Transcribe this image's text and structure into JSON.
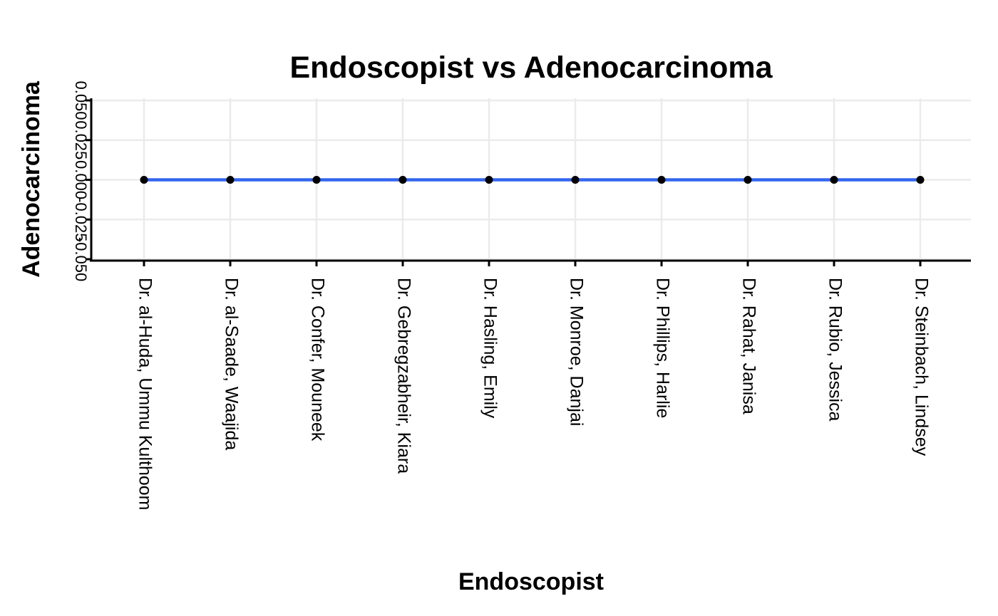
{
  "chart_data": {
    "type": "line",
    "title": "Endoscopist vs Adenocarcinoma",
    "xlabel": "Endoscopist",
    "ylabel": "Adenocarcinoma",
    "categories": [
      "Dr. al-Huda, Ummu Kulthoom",
      "Dr. al-Saade, Waajida",
      "Dr. Confer, Mouneek",
      "Dr. Gebregzabheir, Kiara",
      "Dr. Hasling, Emily",
      "Dr. Monroe, Danjai",
      "Dr. Phillips, Harlie",
      "Dr. Rahat, Janisa",
      "Dr. Rubio, Jessica",
      "Dr. Steinbach, Lindsey"
    ],
    "series": [
      {
        "values": [
          0,
          0,
          0,
          0,
          0,
          0,
          0,
          0,
          0,
          0
        ]
      }
    ],
    "ylim": [
      -0.05,
      0.05
    ],
    "yticks": [
      "-0.050",
      "-0.025",
      "0.000",
      "0.025",
      "0.050"
    ],
    "grid": true,
    "line_color": "#3366ee",
    "marker_color": "#000000"
  }
}
